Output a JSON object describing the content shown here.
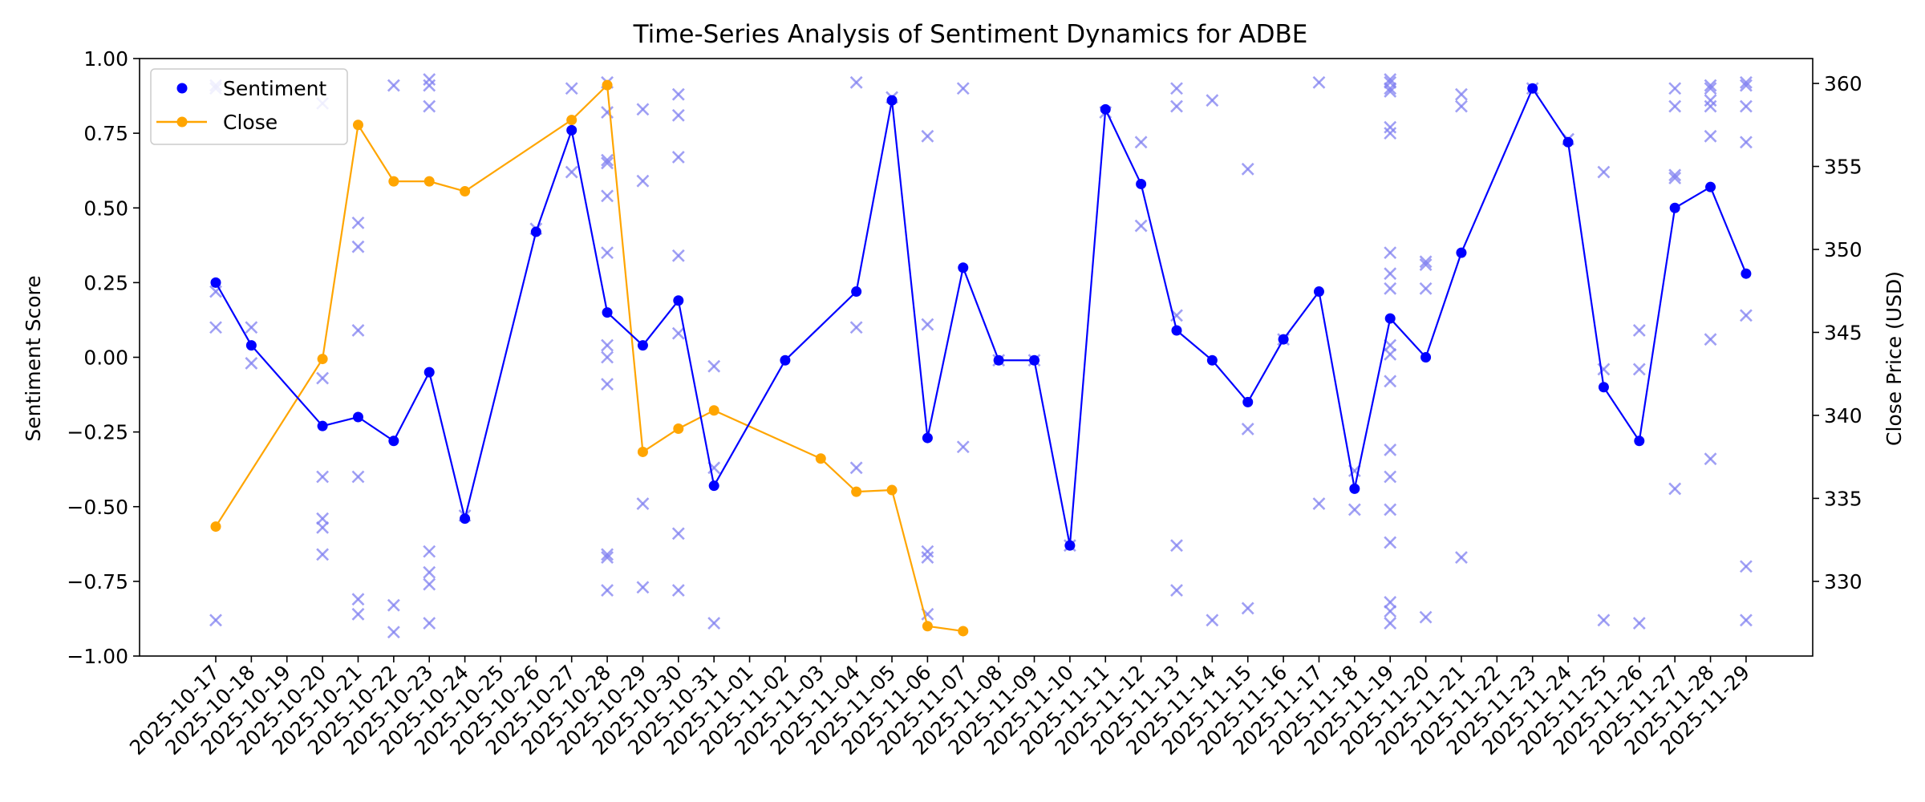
{
  "chart_data": {
    "type": "line",
    "title": "Time-Series Analysis of Sentiment Dynamics for ADBE",
    "xlabel": "",
    "ylabel": "Sentiment Score",
    "y2label": "Close Price (USD)",
    "ylim": [
      -1.0,
      1.0
    ],
    "y2lim": [
      325.5,
      361.5
    ],
    "y_ticks": [
      "1.00",
      "0.75",
      "0.50",
      "0.25",
      "0.00",
      "−0.25",
      "−0.50",
      "−0.75",
      "−1.00"
    ],
    "y2_ticks": [
      "360",
      "355",
      "350",
      "345",
      "340",
      "335",
      "330"
    ],
    "grid": false,
    "legend_position": "top-left",
    "colors": {
      "sentiment": "#0000ff",
      "close": "#ffa500",
      "scatter": "#8080f0"
    },
    "categories": [
      "2025-10-17",
      "2025-10-18",
      "2025-10-19",
      "2025-10-20",
      "2025-10-21",
      "2025-10-22",
      "2025-10-23",
      "2025-10-24",
      "2025-10-25",
      "2025-10-26",
      "2025-10-27",
      "2025-10-28",
      "2025-10-29",
      "2025-10-30",
      "2025-10-31",
      "2025-11-01",
      "2025-11-02",
      "2025-11-03",
      "2025-11-04",
      "2025-11-05",
      "2025-11-06",
      "2025-11-07",
      "2025-11-08",
      "2025-11-09",
      "2025-11-10",
      "2025-11-11",
      "2025-11-12",
      "2025-11-13",
      "2025-11-14",
      "2025-11-15",
      "2025-11-16",
      "2025-11-17",
      "2025-11-18",
      "2025-11-19",
      "2025-11-20",
      "2025-11-21",
      "2025-11-22",
      "2025-11-23",
      "2025-11-24",
      "2025-11-25",
      "2025-11-26",
      "2025-11-27",
      "2025-11-28",
      "2025-11-29"
    ],
    "series": [
      {
        "name": "Sentiment",
        "axis": "left",
        "marker": "circle",
        "points": [
          [
            "2025-10-17",
            0.25
          ],
          [
            "2025-10-18",
            0.04
          ],
          [
            "2025-10-20",
            -0.23
          ],
          [
            "2025-10-21",
            -0.2
          ],
          [
            "2025-10-22",
            -0.28
          ],
          [
            "2025-10-23",
            -0.05
          ],
          [
            "2025-10-24",
            -0.54
          ],
          [
            "2025-10-26",
            0.42
          ],
          [
            "2025-10-27",
            0.76
          ],
          [
            "2025-10-28",
            0.15
          ],
          [
            "2025-10-29",
            0.04
          ],
          [
            "2025-10-30",
            0.19
          ],
          [
            "2025-10-31",
            -0.43
          ],
          [
            "2025-11-02",
            -0.01
          ],
          [
            "2025-11-04",
            0.22
          ],
          [
            "2025-11-05",
            0.86
          ],
          [
            "2025-11-06",
            -0.27
          ],
          [
            "2025-11-07",
            0.3
          ],
          [
            "2025-11-08",
            -0.01
          ],
          [
            "2025-11-09",
            -0.01
          ],
          [
            "2025-11-10",
            -0.63
          ],
          [
            "2025-11-11",
            0.83
          ],
          [
            "2025-11-12",
            0.58
          ],
          [
            "2025-11-13",
            0.09
          ],
          [
            "2025-11-14",
            -0.01
          ],
          [
            "2025-11-15",
            -0.15
          ],
          [
            "2025-11-16",
            0.06
          ],
          [
            "2025-11-17",
            0.22
          ],
          [
            "2025-11-18",
            -0.44
          ],
          [
            "2025-11-19",
            0.13
          ],
          [
            "2025-11-20",
            0.0
          ],
          [
            "2025-11-21",
            0.35
          ],
          [
            "2025-11-23",
            0.9
          ],
          [
            "2025-11-24",
            0.72
          ],
          [
            "2025-11-25",
            -0.1
          ],
          [
            "2025-11-26",
            -0.28
          ],
          [
            "2025-11-27",
            0.5
          ],
          [
            "2025-11-28",
            0.57
          ],
          [
            "2025-11-29",
            0.28
          ]
        ]
      },
      {
        "name": "Close",
        "axis": "right",
        "marker": "circle",
        "points": [
          [
            "2025-10-17",
            333.3
          ],
          [
            "2025-10-20",
            343.4
          ],
          [
            "2025-10-21",
            357.5
          ],
          [
            "2025-10-22",
            354.1
          ],
          [
            "2025-10-23",
            354.1
          ],
          [
            "2025-10-24",
            353.5
          ],
          [
            "2025-10-27",
            357.8
          ],
          [
            "2025-10-28",
            359.9
          ],
          [
            "2025-10-29",
            337.8
          ],
          [
            "2025-10-30",
            339.2
          ],
          [
            "2025-10-31",
            340.3
          ],
          [
            "2025-11-03",
            337.4
          ],
          [
            "2025-11-04",
            335.4
          ],
          [
            "2025-11-05",
            335.5
          ],
          [
            "2025-11-06",
            327.3
          ],
          [
            "2025-11-07",
            327.0
          ]
        ]
      }
    ],
    "individual_scores": {
      "marker": "x",
      "points": [
        [
          "2025-10-17",
          0.91
        ],
        [
          "2025-10-17",
          0.9
        ],
        [
          "2025-10-17",
          0.22
        ],
        [
          "2025-10-17",
          0.1
        ],
        [
          "2025-10-17",
          -0.88
        ],
        [
          "2025-10-18",
          0.1
        ],
        [
          "2025-10-18",
          -0.02
        ],
        [
          "2025-10-20",
          0.85
        ],
        [
          "2025-10-20",
          -0.07
        ],
        [
          "2025-10-20",
          -0.4
        ],
        [
          "2025-10-20",
          -0.54
        ],
        [
          "2025-10-20",
          -0.57
        ],
        [
          "2025-10-20",
          -0.66
        ],
        [
          "2025-10-21",
          0.45
        ],
        [
          "2025-10-21",
          0.37
        ],
        [
          "2025-10-21",
          0.09
        ],
        [
          "2025-10-21",
          -0.4
        ],
        [
          "2025-10-21",
          -0.81
        ],
        [
          "2025-10-21",
          -0.86
        ],
        [
          "2025-10-22",
          0.91
        ],
        [
          "2025-10-22",
          -0.83
        ],
        [
          "2025-10-22",
          -0.92
        ],
        [
          "2025-10-23",
          0.93
        ],
        [
          "2025-10-23",
          0.91
        ],
        [
          "2025-10-23",
          0.84
        ],
        [
          "2025-10-23",
          -0.65
        ],
        [
          "2025-10-23",
          -0.72
        ],
        [
          "2025-10-23",
          -0.76
        ],
        [
          "2025-10-23",
          -0.89
        ],
        [
          "2025-10-24",
          -0.53
        ],
        [
          "2025-10-26",
          0.43
        ],
        [
          "2025-10-27",
          0.9
        ],
        [
          "2025-10-27",
          0.62
        ],
        [
          "2025-10-28",
          0.92
        ],
        [
          "2025-10-28",
          0.82
        ],
        [
          "2025-10-28",
          0.66
        ],
        [
          "2025-10-28",
          0.65
        ],
        [
          "2025-10-28",
          0.54
        ],
        [
          "2025-10-28",
          0.35
        ],
        [
          "2025-10-28",
          0.04
        ],
        [
          "2025-10-28",
          0.0
        ],
        [
          "2025-10-28",
          -0.09
        ],
        [
          "2025-10-28",
          -0.66
        ],
        [
          "2025-10-28",
          -0.67
        ],
        [
          "2025-10-28",
          -0.78
        ],
        [
          "2025-10-29",
          0.83
        ],
        [
          "2025-10-29",
          0.59
        ],
        [
          "2025-10-29",
          -0.49
        ],
        [
          "2025-10-29",
          -0.77
        ],
        [
          "2025-10-30",
          0.88
        ],
        [
          "2025-10-30",
          0.81
        ],
        [
          "2025-10-30",
          0.67
        ],
        [
          "2025-10-30",
          0.34
        ],
        [
          "2025-10-30",
          0.08
        ],
        [
          "2025-10-30",
          -0.59
        ],
        [
          "2025-10-30",
          -0.78
        ],
        [
          "2025-10-31",
          -0.03
        ],
        [
          "2025-10-31",
          -0.37
        ],
        [
          "2025-10-31",
          -0.89
        ],
        [
          "2025-11-04",
          0.92
        ],
        [
          "2025-11-04",
          0.1
        ],
        [
          "2025-11-04",
          -0.37
        ],
        [
          "2025-11-05",
          0.87
        ],
        [
          "2025-11-06",
          0.74
        ],
        [
          "2025-11-06",
          0.11
        ],
        [
          "2025-11-06",
          -0.65
        ],
        [
          "2025-11-06",
          -0.67
        ],
        [
          "2025-11-06",
          -0.86
        ],
        [
          "2025-11-07",
          0.9
        ],
        [
          "2025-11-07",
          -0.3
        ],
        [
          "2025-11-08",
          -0.01
        ],
        [
          "2025-11-09",
          -0.01
        ],
        [
          "2025-11-10",
          -0.63
        ],
        [
          "2025-11-11",
          0.82
        ],
        [
          "2025-11-12",
          0.72
        ],
        [
          "2025-11-12",
          0.44
        ],
        [
          "2025-11-13",
          0.9
        ],
        [
          "2025-11-13",
          0.84
        ],
        [
          "2025-11-13",
          0.14
        ],
        [
          "2025-11-13",
          -0.63
        ],
        [
          "2025-11-13",
          -0.78
        ],
        [
          "2025-11-14",
          0.86
        ],
        [
          "2025-11-14",
          -0.88
        ],
        [
          "2025-11-15",
          0.63
        ],
        [
          "2025-11-15",
          -0.24
        ],
        [
          "2025-11-15",
          -0.84
        ],
        [
          "2025-11-16",
          0.06
        ],
        [
          "2025-11-17",
          0.92
        ],
        [
          "2025-11-17",
          -0.49
        ],
        [
          "2025-11-18",
          -0.38
        ],
        [
          "2025-11-18",
          -0.51
        ],
        [
          "2025-11-19",
          0.93
        ],
        [
          "2025-11-19",
          0.92
        ],
        [
          "2025-11-19",
          0.9
        ],
        [
          "2025-11-19",
          0.89
        ],
        [
          "2025-11-19",
          0.77
        ],
        [
          "2025-11-19",
          0.75
        ],
        [
          "2025-11-19",
          0.35
        ],
        [
          "2025-11-19",
          0.28
        ],
        [
          "2025-11-19",
          0.23
        ],
        [
          "2025-11-19",
          0.04
        ],
        [
          "2025-11-19",
          0.01
        ],
        [
          "2025-11-19",
          -0.08
        ],
        [
          "2025-11-19",
          -0.31
        ],
        [
          "2025-11-19",
          -0.4
        ],
        [
          "2025-11-19",
          -0.51
        ],
        [
          "2025-11-19",
          -0.62
        ],
        [
          "2025-11-19",
          -0.82
        ],
        [
          "2025-11-19",
          -0.85
        ],
        [
          "2025-11-19",
          -0.89
        ],
        [
          "2025-11-20",
          0.32
        ],
        [
          "2025-11-20",
          0.31
        ],
        [
          "2025-11-20",
          0.23
        ],
        [
          "2025-11-20",
          -0.87
        ],
        [
          "2025-11-21",
          0.88
        ],
        [
          "2025-11-21",
          0.84
        ],
        [
          "2025-11-21",
          -0.67
        ],
        [
          "2025-11-23",
          0.9
        ],
        [
          "2025-11-24",
          0.73
        ],
        [
          "2025-11-25",
          0.62
        ],
        [
          "2025-11-25",
          -0.04
        ],
        [
          "2025-11-25",
          -0.88
        ],
        [
          "2025-11-26",
          0.09
        ],
        [
          "2025-11-26",
          -0.04
        ],
        [
          "2025-11-26",
          -0.89
        ],
        [
          "2025-11-27",
          0.9
        ],
        [
          "2025-11-27",
          0.84
        ],
        [
          "2025-11-27",
          0.61
        ],
        [
          "2025-11-27",
          0.6
        ],
        [
          "2025-11-27",
          -0.44
        ],
        [
          "2025-11-28",
          0.91
        ],
        [
          "2025-11-28",
          0.9
        ],
        [
          "2025-11-28",
          0.86
        ],
        [
          "2025-11-28",
          0.84
        ],
        [
          "2025-11-28",
          0.74
        ],
        [
          "2025-11-28",
          0.06
        ],
        [
          "2025-11-28",
          -0.34
        ],
        [
          "2025-11-29",
          0.92
        ],
        [
          "2025-11-29",
          0.91
        ],
        [
          "2025-11-29",
          0.84
        ],
        [
          "2025-11-29",
          0.72
        ],
        [
          "2025-11-29",
          0.14
        ],
        [
          "2025-11-29",
          -0.7
        ],
        [
          "2025-11-29",
          -0.88
        ]
      ]
    }
  },
  "legend": {
    "sentiment_label": "Sentiment",
    "close_label": "Close"
  }
}
